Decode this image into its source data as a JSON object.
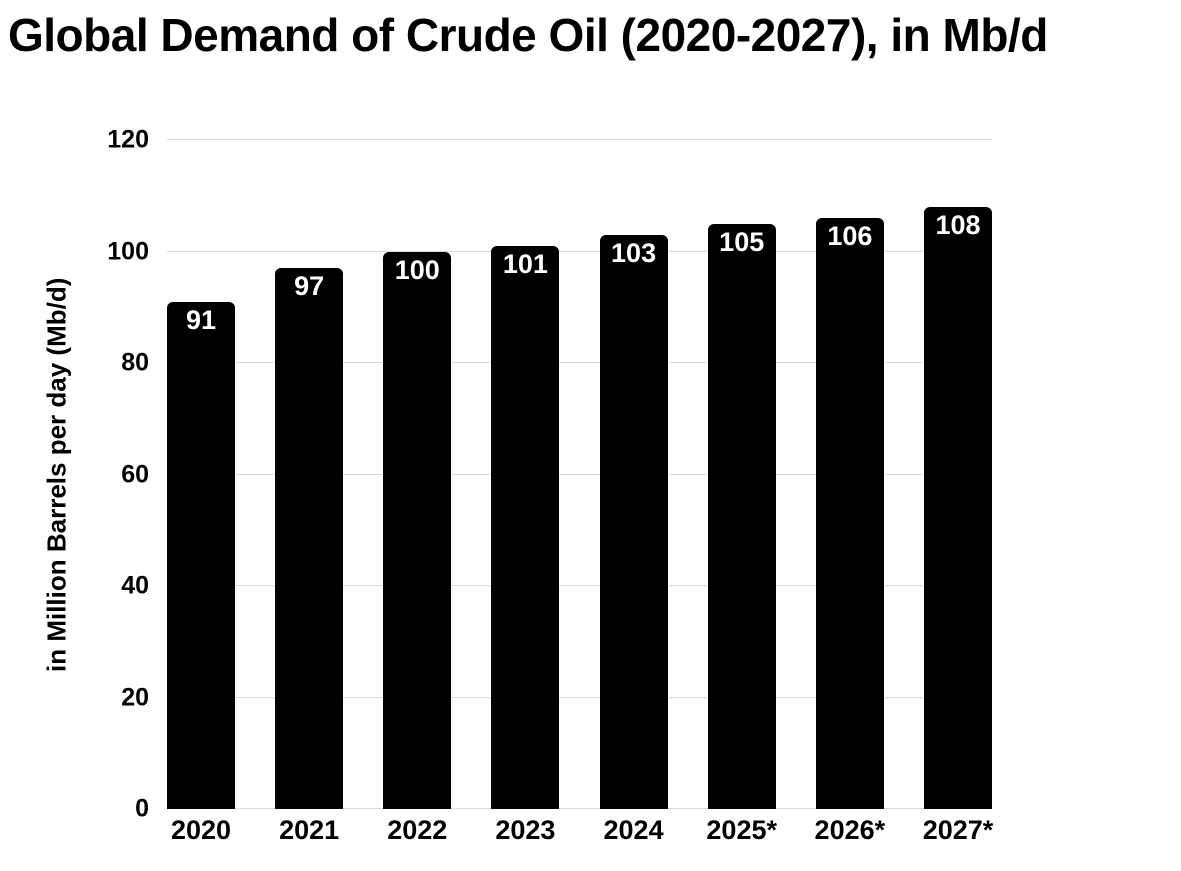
{
  "header": {
    "title": "Global Demand of Crude Oil (2020-2027), in Mb/d"
  },
  "chart_data": {
    "type": "bar",
    "title": "Global Demand of Crude Oil (2020-2027), in Mb/d",
    "categories": [
      "2020",
      "2021",
      "2022",
      "2023",
      "2024",
      "2025*",
      "2026*",
      "2027*"
    ],
    "values": [
      91,
      97,
      100,
      101,
      103,
      105,
      106,
      108
    ],
    "value_labels": [
      "91",
      "97",
      "100",
      "101",
      "103",
      "105",
      "106",
      "108"
    ],
    "xlabel": "",
    "ylabel": "in Million Barrels per day (Mb/d)",
    "ylim": [
      0,
      120
    ],
    "yticks": [
      0,
      20,
      40,
      60,
      80,
      100,
      120
    ],
    "grid": "horizontal",
    "legend_position": "none",
    "colors": {
      "bar": "#000000",
      "value_label": "#ffffff",
      "gridline": "#d9d9d9",
      "text": "#000000",
      "background": "#ffffff"
    }
  }
}
